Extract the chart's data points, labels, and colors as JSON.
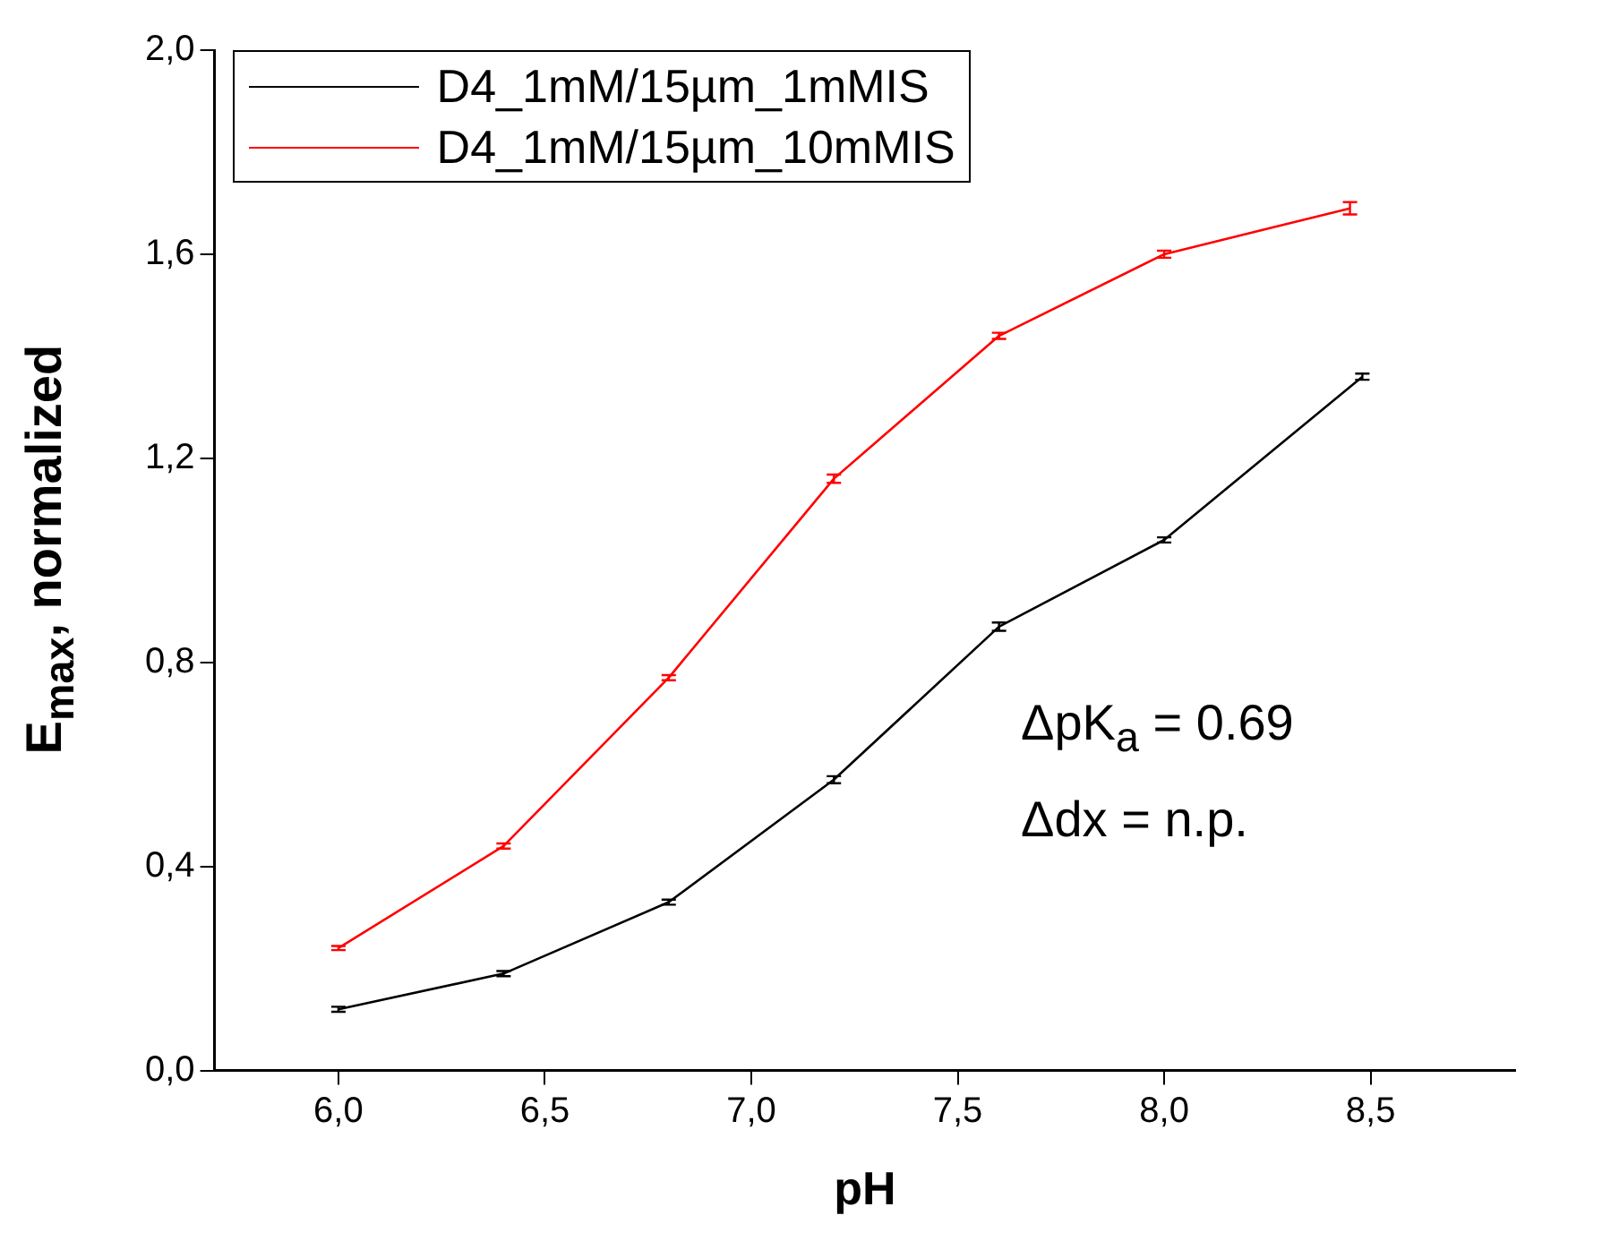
{
  "chart_data": {
    "type": "line",
    "xlabel": "pH",
    "ylabel": "E$_{max}$, normalized",
    "xlim": [
      5.7,
      8.85
    ],
    "xticks": [
      {
        "value": 6,
        "label": "6,0"
      },
      {
        "value": 6.5,
        "label": "6,5"
      },
      {
        "value": 7,
        "label": "7,0"
      },
      {
        "value": 7.5,
        "label": "7,5"
      },
      {
        "value": 8,
        "label": "8,0"
      },
      {
        "value": 8.5,
        "label": "8,5"
      }
    ],
    "ylim": [
      0,
      2
    ],
    "yticks": [
      {
        "value": 0,
        "label": "0,0"
      },
      {
        "value": 0.4,
        "label": "0,4"
      },
      {
        "value": 0.8,
        "label": "0,8"
      },
      {
        "value": 1.2,
        "label": "1,2"
      },
      {
        "value": 1.6,
        "label": "1,6"
      },
      {
        "value": 2,
        "label": "2,0"
      }
    ],
    "series": [
      {
        "name": "D4_1mM/15µm_1mMIS",
        "color": "#000000",
        "x": [
          6.0,
          6.4,
          6.8,
          7.2,
          7.6,
          8.0,
          8.48
        ],
        "values": [
          0.12,
          0.19,
          0.33,
          0.57,
          0.87,
          1.04,
          1.36
        ],
        "errors": [
          0.005,
          0.005,
          0.005,
          0.007,
          0.008,
          0.005,
          0.006
        ]
      },
      {
        "name": "D4_1mM/15µm_10mMIS",
        "color": "#ff0000",
        "x": [
          6.0,
          6.4,
          6.8,
          7.2,
          7.6,
          8.0,
          8.45
        ],
        "values": [
          0.24,
          0.44,
          0.77,
          1.16,
          1.44,
          1.6,
          1.69
        ],
        "errors": [
          0.004,
          0.005,
          0.005,
          0.008,
          0.006,
          0.007,
          0.012
        ]
      }
    ],
    "marker": "none",
    "legend": "top left",
    "annotations": [
      "ΔpK$_{a}$ = 0.69",
      "Δdx = n.p."
    ]
  }
}
